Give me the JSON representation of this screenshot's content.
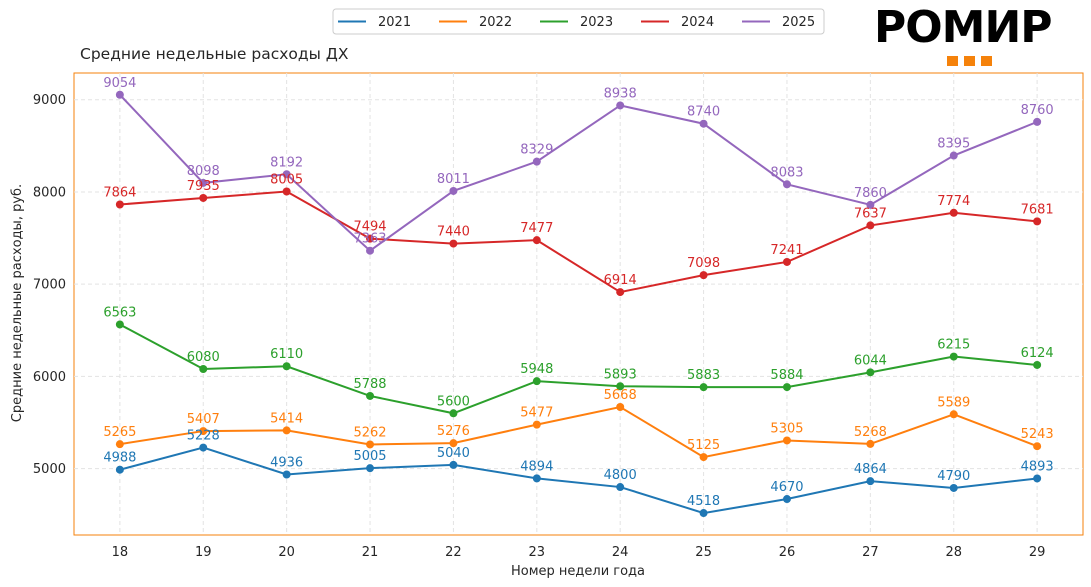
{
  "logo": {
    "text": "РОМИР",
    "accent_color": "#f5820b"
  },
  "chart_data": {
    "type": "line",
    "title": "Средние недельные расходы ДХ",
    "xlabel": "Номер недели года",
    "ylabel": "Средние недельные расходы, руб.",
    "x": [
      18,
      19,
      20,
      21,
      22,
      23,
      24,
      25,
      26,
      27,
      28,
      29
    ],
    "xlim": [
      17.45,
      29.55
    ],
    "ylim": [
      4280,
      9290
    ],
    "yticks": [
      5000,
      6000,
      7000,
      8000,
      9000
    ],
    "grid": true,
    "legend_position": "top-center",
    "frame_color": "#f5820b",
    "series": [
      {
        "name": "2021",
        "color": "#1f77b4",
        "values": [
          4988,
          5228,
          4936,
          5005,
          5040,
          4894,
          4800,
          4518,
          4670,
          4864,
          4790,
          4893
        ]
      },
      {
        "name": "2022",
        "color": "#ff7f0e",
        "values": [
          5265,
          5407,
          5414,
          5262,
          5276,
          5477,
          5668,
          5125,
          5305,
          5268,
          5589,
          5243
        ]
      },
      {
        "name": "2023",
        "color": "#2ca02c",
        "values": [
          6563,
          6080,
          6110,
          5788,
          5600,
          5948,
          5893,
          5883,
          5884,
          6044,
          6215,
          6124
        ]
      },
      {
        "name": "2024",
        "color": "#d62728",
        "values": [
          7864,
          7935,
          8005,
          7494,
          7440,
          7477,
          6914,
          7098,
          7241,
          7637,
          7774,
          7681
        ]
      },
      {
        "name": "2025",
        "color": "#9467bd",
        "values": [
          9054,
          8098,
          8192,
          7363,
          8011,
          8329,
          8938,
          8740,
          8083,
          7860,
          8395,
          8760
        ]
      }
    ]
  }
}
